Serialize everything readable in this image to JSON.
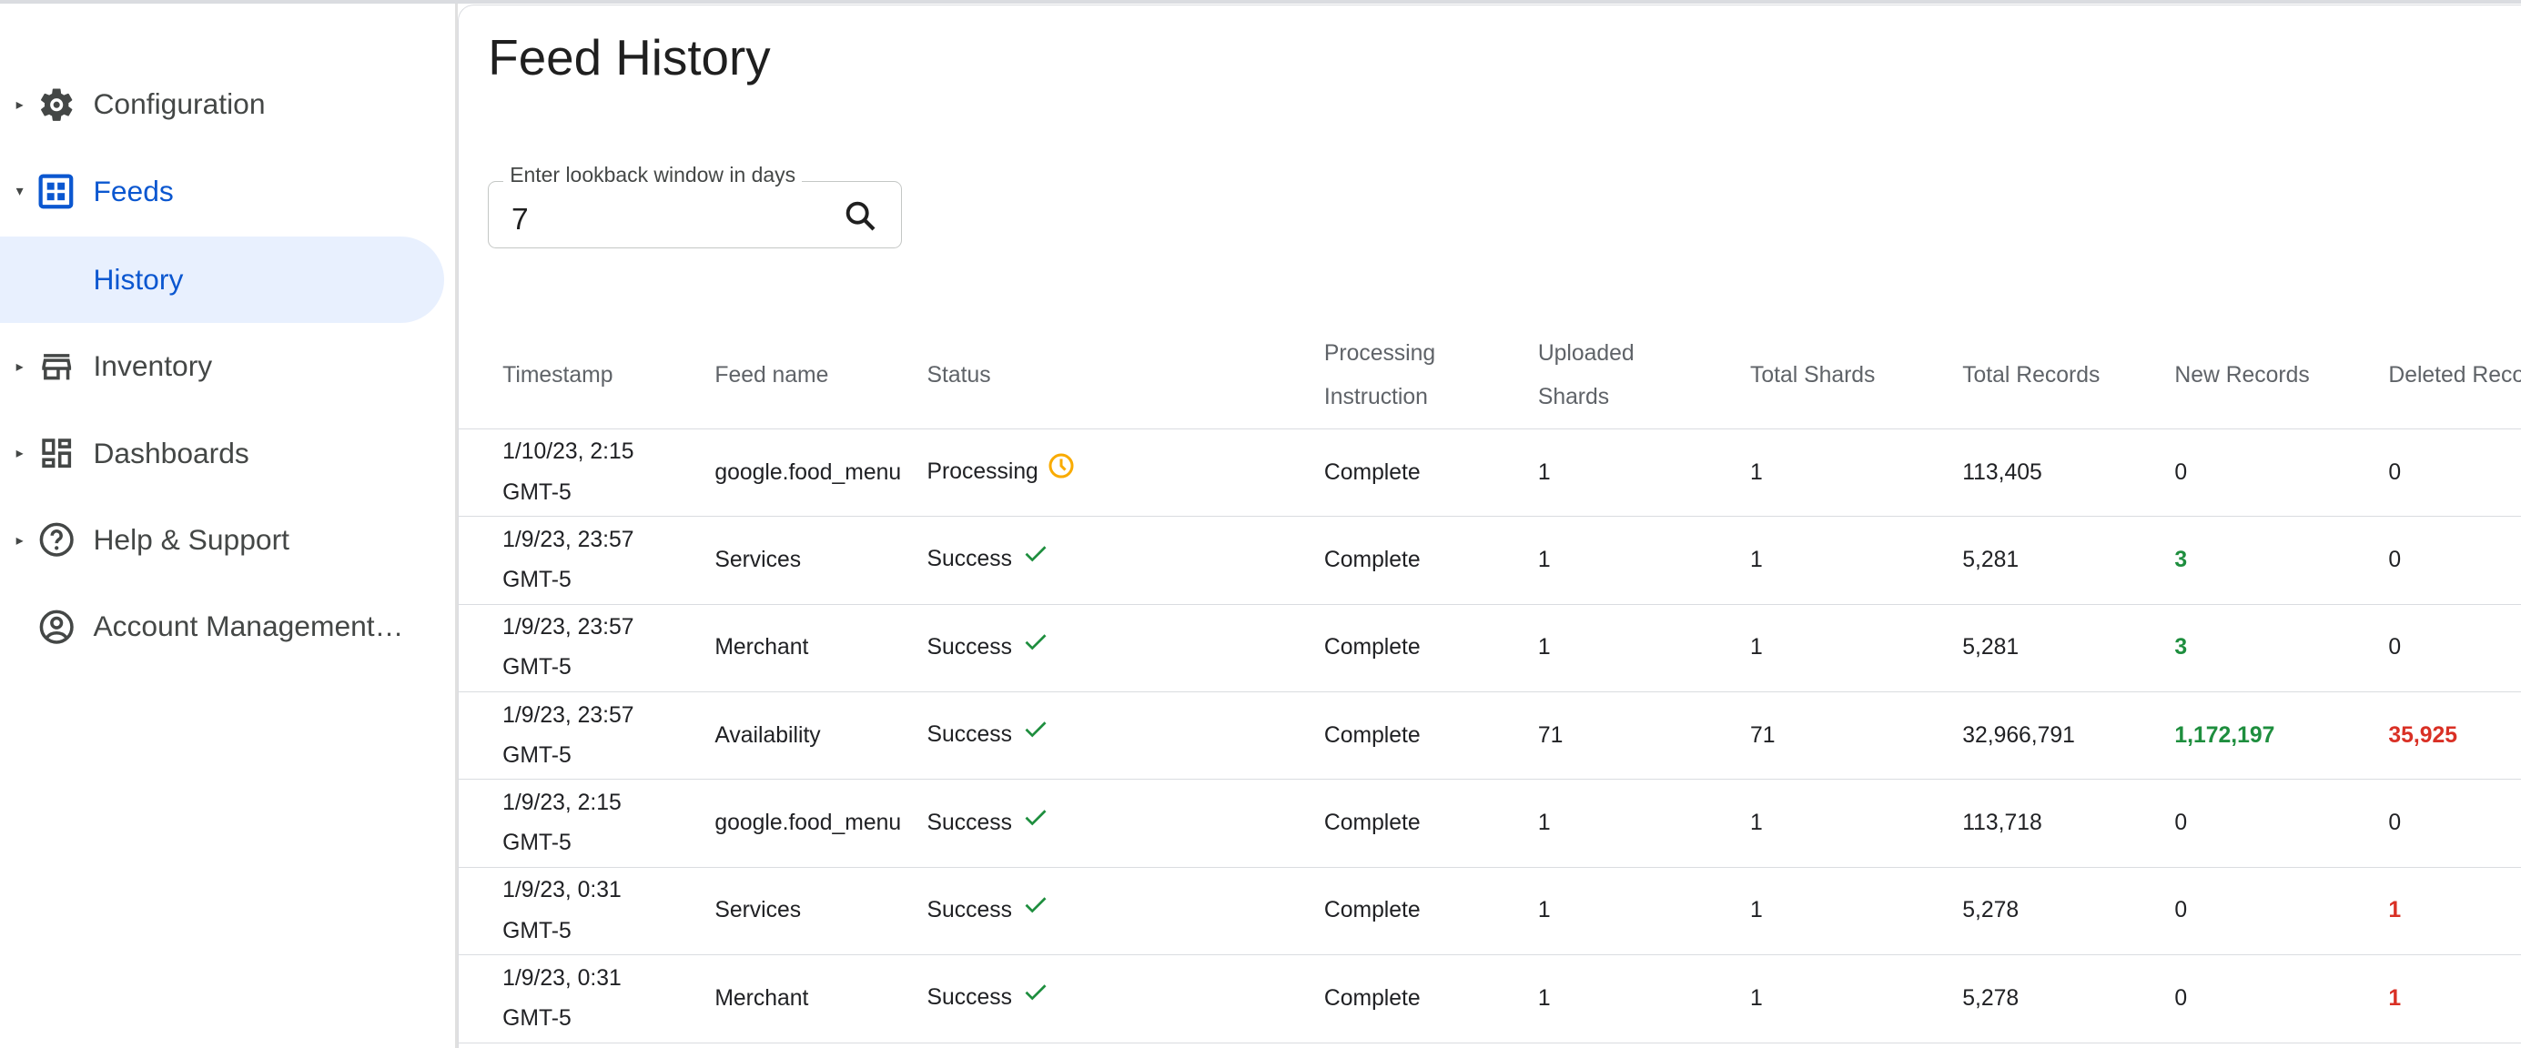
{
  "sidebar": {
    "items": [
      {
        "label": "Configuration",
        "icon": "gear-icon",
        "caret": "▸"
      },
      {
        "label": "Feeds",
        "icon": "grid-icon",
        "caret": "▾"
      },
      {
        "label": "History"
      },
      {
        "label": "Inventory",
        "icon": "store-icon",
        "caret": "▸"
      },
      {
        "label": "Dashboards",
        "icon": "dashboard-icon",
        "caret": "▸"
      },
      {
        "label": "Help & Support",
        "icon": "help-icon",
        "caret": "▸"
      },
      {
        "label": "Account Management…",
        "icon": "account-icon"
      }
    ]
  },
  "main": {
    "title": "Feed History",
    "lookback": {
      "label": "Enter lookback window in days",
      "value": "7"
    },
    "colors": {
      "accent": "#0b57d0",
      "positive": "#1e8e3e",
      "negative": "#d93025",
      "processing": "#f9ab00"
    },
    "table": {
      "headers": [
        "Timestamp",
        "Feed name",
        "Status",
        "Processing Instruction",
        "Uploaded Shards",
        "Total Shards",
        "Total Records",
        "New Records",
        "Deleted Reco"
      ],
      "rows": [
        {
          "timestamp": "1/10/23, 2:15 GMT-5",
          "feed": "google.food_menu",
          "status": "Processing",
          "status_icon": "clock-icon",
          "instruction": "Complete",
          "uploaded": "1",
          "total_shards": "1",
          "total_records": "113,405",
          "new_records": "0",
          "deleted": "0"
        },
        {
          "timestamp": "1/9/23, 23:57 GMT-5",
          "feed": "Services",
          "status": "Success",
          "status_icon": "check-icon",
          "instruction": "Complete",
          "uploaded": "1",
          "total_shards": "1",
          "total_records": "5,281",
          "new_records": "3",
          "deleted": "0"
        },
        {
          "timestamp": "1/9/23, 23:57 GMT-5",
          "feed": "Merchant",
          "status": "Success",
          "status_icon": "check-icon",
          "instruction": "Complete",
          "uploaded": "1",
          "total_shards": "1",
          "total_records": "5,281",
          "new_records": "3",
          "deleted": "0"
        },
        {
          "timestamp": "1/9/23, 23:57 GMT-5",
          "feed": "Availability",
          "status": "Success",
          "status_icon": "check-icon",
          "instruction": "Complete",
          "uploaded": "71",
          "total_shards": "71",
          "total_records": "32,966,791",
          "new_records": "1,172,197",
          "deleted": "35,925"
        },
        {
          "timestamp": "1/9/23, 2:15 GMT-5",
          "feed": "google.food_menu",
          "status": "Success",
          "status_icon": "check-icon",
          "instruction": "Complete",
          "uploaded": "1",
          "total_shards": "1",
          "total_records": "113,718",
          "new_records": "0",
          "deleted": "0"
        },
        {
          "timestamp": "1/9/23, 0:31 GMT-5",
          "feed": "Services",
          "status": "Success",
          "status_icon": "check-icon",
          "instruction": "Complete",
          "uploaded": "1",
          "total_shards": "1",
          "total_records": "5,278",
          "new_records": "0",
          "deleted": "1"
        },
        {
          "timestamp": "1/9/23, 0:31 GMT-5",
          "feed": "Merchant",
          "status": "Success",
          "status_icon": "check-icon",
          "instruction": "Complete",
          "uploaded": "1",
          "total_shards": "1",
          "total_records": "5,278",
          "new_records": "0",
          "deleted": "1"
        }
      ]
    }
  }
}
